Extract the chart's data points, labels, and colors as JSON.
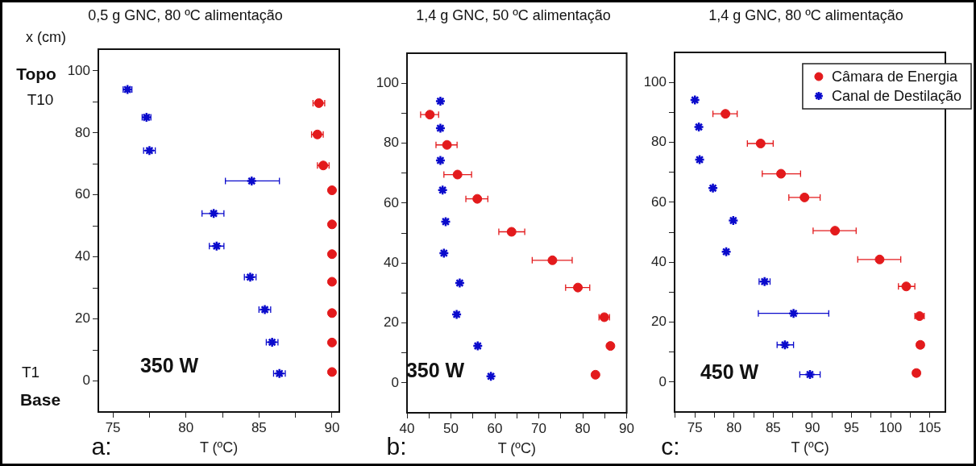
{
  "chart_data": [
    {
      "type": "scatter",
      "title": "0,5 g GNC, 80 ºC alimentação",
      "xlabel": "T (ºC)",
      "ylabel": "x (cm)",
      "annotations": [
        "Topo",
        "T10",
        "T1",
        "Base",
        "350 W",
        "a:"
      ],
      "xlim": [
        74,
        90.5
      ],
      "xticks": [
        75,
        {
          "value": 77.5,
          "label": null
        },
        80,
        {
          "value": 82.5,
          "label": null
        },
        85,
        {
          "value": 87.5,
          "label": null
        },
        90
      ],
      "ylim": [
        -10,
        107
      ],
      "yticks": [
        0,
        {
          "value": 10,
          "label": null
        },
        20,
        {
          "value": 30,
          "label": null
        },
        40,
        {
          "value": 50,
          "label": null
        },
        60,
        {
          "value": 70,
          "label": null
        },
        80,
        {
          "value": 90,
          "label": null
        },
        100
      ],
      "series": [
        {
          "color": "#e31a1c",
          "marker": "circle",
          "x": [
            89.1,
            89.0,
            89.4,
            90,
            90,
            90,
            90,
            90,
            90,
            90
          ],
          "values": [
            89.6,
            79.5,
            69.5,
            61.5,
            50.5,
            40.9,
            32.0,
            21.9,
            12.4,
            2.9
          ],
          "xerrors": [
            0.4,
            0.4,
            0.4,
            null,
            null,
            null,
            null,
            null,
            null,
            null
          ]
        },
        {
          "color": "#0a0acc",
          "marker": "cross",
          "x": [
            76.0,
            77.3,
            77.5,
            84.5,
            81.9,
            82.1,
            84.4,
            85.4,
            85.9,
            86.4
          ],
          "values": [
            94.0,
            85.0,
            74.3,
            64.5,
            54.0,
            43.5,
            33.5,
            23.0,
            12.5,
            2.4
          ],
          "xerrors": [
            0.3,
            0.3,
            0.4,
            [
              82.7,
              86.4
            ],
            [
              81.1,
              82.6
            ],
            0.5,
            0.4,
            0.4,
            0.4,
            0.4
          ]
        }
      ]
    },
    {
      "type": "scatter",
      "title": "1,4 g GNC, 50 ºC alimentação",
      "xlabel": "T (ºC)",
      "annotations": [
        "350 W",
        "b:"
      ],
      "xlim": [
        40,
        90
      ],
      "xticks": [
        40,
        {
          "value": 45,
          "label": null
        },
        50,
        {
          "value": 55,
          "label": null
        },
        60,
        {
          "value": 65,
          "label": null
        },
        70,
        {
          "value": 75,
          "label": null
        },
        80,
        {
          "value": 85,
          "label": null
        },
        90
      ],
      "ylim": [
        -10,
        110
      ],
      "yticks": [
        0,
        {
          "value": 10,
          "label": null
        },
        20,
        {
          "value": 30,
          "label": null
        },
        40,
        {
          "value": 50,
          "label": null
        },
        60,
        {
          "value": 70,
          "label": null
        },
        80,
        {
          "value": 90,
          "label": null
        },
        100
      ],
      "series": [
        {
          "color": "#e31a1c",
          "marker": "circle",
          "x": [
            45.2,
            49.1,
            51.5,
            56.0,
            63.8,
            73.1,
            78.9,
            84.9,
            86.3,
            82.9
          ],
          "values": [
            89.5,
            79.4,
            69.5,
            61.4,
            50.4,
            40.9,
            31.8,
            21.9,
            12.3,
            2.7
          ],
          "xerrors": [
            [
              43.1,
              47.2
            ],
            [
              46.6,
              51.4
            ],
            [
              48.4,
              54.7
            ],
            [
              53.4,
              58.4
            ],
            [
              60.9,
              66.8
            ],
            [
              68.5,
              77.6
            ],
            [
              76.1,
              81.6
            ],
            [
              83.7,
              86.1
            ],
            0.6,
            0.6
          ]
        },
        {
          "color": "#0a0acc",
          "marker": "cross",
          "x": [
            47.6,
            47.6,
            47.6,
            48.1,
            48.8,
            48.4,
            52.0,
            51.3,
            56.1,
            59.1
          ],
          "values": [
            94.0,
            85.0,
            74.2,
            64.3,
            53.8,
            43.3,
            33.3,
            22.8,
            12.3,
            2.2
          ]
        }
      ]
    },
    {
      "type": "scatter",
      "title": "1,4 g GNC, 80 ºC alimentação",
      "xlabel": "T (ºC)",
      "annotations": [
        "450 W",
        "c:"
      ],
      "legend": "top right",
      "xlim": [
        72.4,
        107
      ],
      "xticks": [
        {
          "value": 72.5,
          "label": null
        },
        75,
        {
          "value": 77.5,
          "label": null
        },
        80,
        {
          "value": 82.5,
          "label": null
        },
        85,
        {
          "value": 87.5,
          "label": null
        },
        90,
        {
          "value": 92.5,
          "label": null
        },
        95,
        {
          "value": 97.5,
          "label": null
        },
        100,
        {
          "value": 102.5,
          "label": null
        },
        105
      ],
      "ylim": [
        -10,
        110
      ],
      "yticks": [
        0,
        {
          "value": 10,
          "label": null
        },
        20,
        {
          "value": 30,
          "label": null
        },
        40,
        {
          "value": 50,
          "label": null
        },
        60,
        {
          "value": 70,
          "label": null
        },
        80,
        {
          "value": 90,
          "label": null
        },
        100
      ],
      "series": [
        {
          "name": "Câmara de Energia",
          "color": "#e31a1c",
          "marker": "circle",
          "x": [
            78.9,
            83.4,
            86.0,
            89.0,
            92.9,
            98.6,
            102.0,
            103.7,
            103.8,
            103.3
          ],
          "values": [
            89.5,
            79.6,
            69.5,
            61.6,
            50.5,
            40.9,
            31.9,
            22.0,
            12.4,
            3.0
          ],
          "xerrors": [
            [
              77.3,
              80.4
            ],
            [
              81.7,
              85.0
            ],
            [
              83.6,
              88.5
            ],
            [
              87.0,
              91.0
            ],
            [
              90.1,
              95.6
            ],
            [
              95.8,
              101.3
            ],
            [
              101.0,
              103.1
            ],
            [
              103.1,
              104.3
            ],
            0.4,
            0.4
          ]
        },
        {
          "name": "Canal de Destilação",
          "color": "#0a0acc",
          "marker": "cross",
          "x": [
            75.0,
            75.5,
            75.6,
            77.3,
            79.9,
            79.0,
            83.9,
            87.6,
            86.5,
            89.7
          ],
          "values": [
            94.1,
            85.1,
            74.2,
            64.7,
            53.9,
            43.5,
            33.5,
            22.9,
            12.4,
            2.5
          ],
          "xerrors": [
            null,
            null,
            null,
            null,
            null,
            null,
            [
              83.2,
              84.6
            ],
            [
              83.1,
              92.1
            ],
            [
              85.5,
              87.6
            ],
            [
              88.4,
              91.0
            ]
          ]
        }
      ]
    }
  ]
}
